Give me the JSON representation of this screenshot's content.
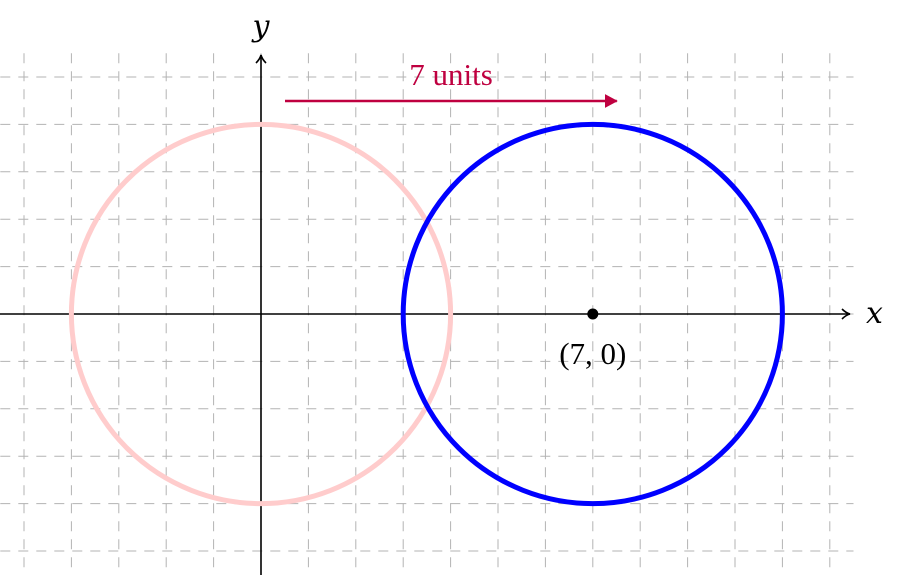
{
  "axes": {
    "x_label": "x",
    "y_label": "y",
    "x_range": [
      -5.5,
      12.5
    ],
    "y_range": [
      -5.5,
      5.5
    ]
  },
  "grid": {
    "visible": true,
    "spacing": 1,
    "style": "dashed"
  },
  "original_circle": {
    "center": [
      0,
      0
    ],
    "radius": 4,
    "color": "#ffcccc"
  },
  "translated_circle": {
    "center": [
      7,
      0
    ],
    "radius": 4,
    "color": "#0000ff"
  },
  "center_point": {
    "coords": [
      7,
      0
    ],
    "label": "(7, 0)"
  },
  "translation": {
    "label": "7 units",
    "dx": 7,
    "color": "#bf0040"
  }
}
